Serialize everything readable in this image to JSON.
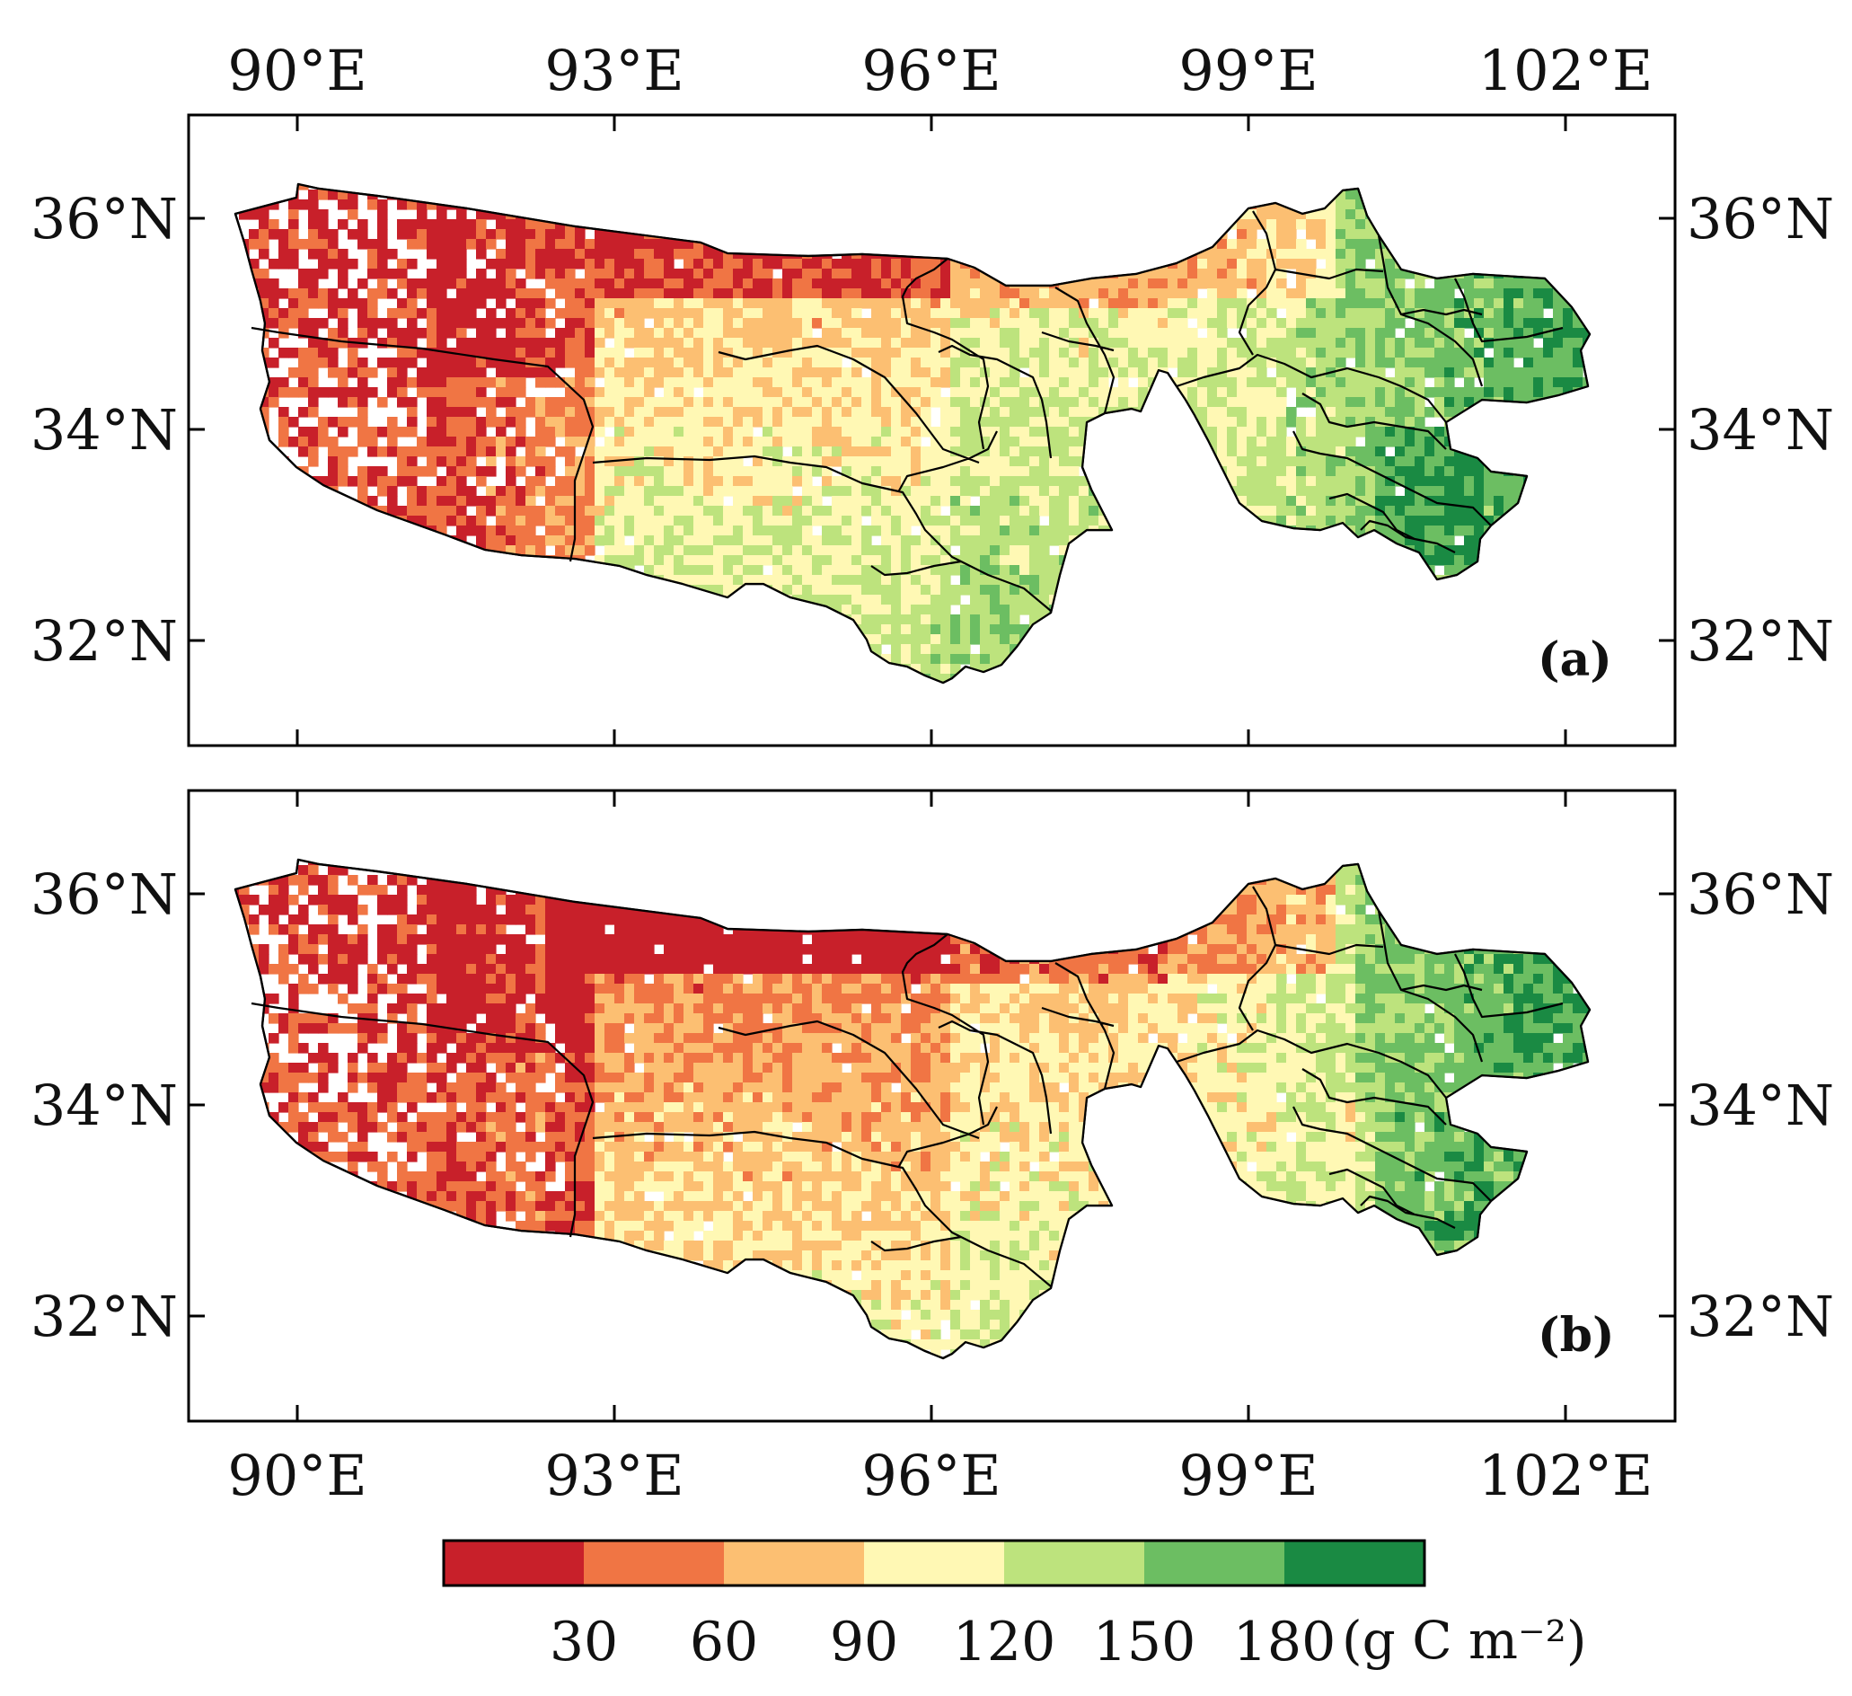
{
  "lon_ticks": [
    "90°E",
    "93°E",
    "96°E",
    "99°E",
    "102°E"
  ],
  "lat_ticks": [
    "36°N",
    "34°N",
    "32°N"
  ],
  "panels": [
    {
      "tag": "(a)"
    },
    {
      "tag": "(b)"
    }
  ],
  "colorbar": {
    "labels": [
      "30",
      "60",
      "90",
      "120",
      "150",
      "180"
    ],
    "unit": "(g C m⁻²)",
    "colors": [
      "#c8202a",
      "#f07544",
      "#fcbf72",
      "#fff8b4",
      "#bde37d",
      "#6cbe62",
      "#1a8a43"
    ]
  }
}
